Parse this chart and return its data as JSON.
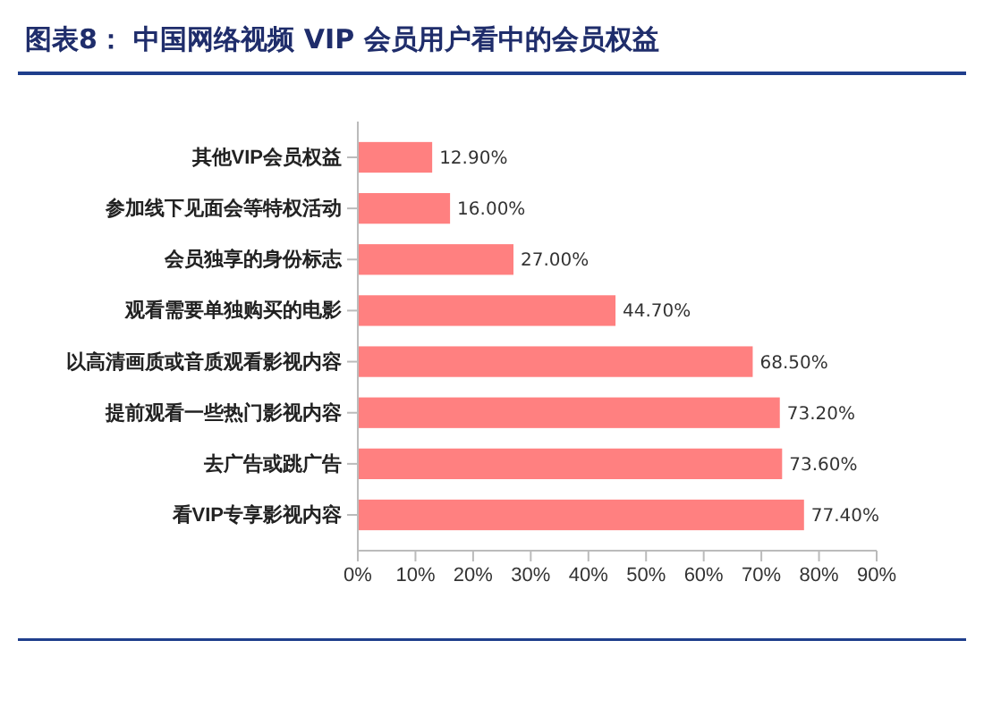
{
  "chart_data": {
    "type": "bar",
    "orientation": "horizontal",
    "title": "图表8：  中国网络视频 VIP 会员用户看中的会员权益",
    "categories": [
      "其他VIP会员权益",
      "参加线下见面会等特权活动",
      "会员独享的身份标志",
      "观看需要单独购买的电影",
      "以高清画质或音质观看影视内容",
      "提前观看一些热门影视内容",
      "去广告或跳广告",
      "看VIP专享影视内容"
    ],
    "values": [
      12.9,
      16.0,
      27.0,
      44.7,
      68.5,
      73.2,
      73.6,
      77.4
    ],
    "value_labels": [
      "12.90%",
      "16.00%",
      "27.00%",
      "44.70%",
      "68.50%",
      "73.20%",
      "73.60%",
      "77.40%"
    ],
    "color": "#ff8080",
    "xlim": [
      0,
      90
    ],
    "xticks": [
      {
        "value": 0,
        "label": "0%"
      },
      {
        "value": 10,
        "label": "10%"
      },
      {
        "value": 20,
        "label": "20%"
      },
      {
        "value": 30,
        "label": "30%"
      },
      {
        "value": 40,
        "label": "40%"
      },
      {
        "value": 50,
        "label": "50%"
      },
      {
        "value": 60,
        "label": "60%"
      },
      {
        "value": 70,
        "label": "70%"
      },
      {
        "value": 80,
        "label": "80%"
      },
      {
        "value": 90,
        "label": "90%"
      }
    ],
    "grid": false
  }
}
